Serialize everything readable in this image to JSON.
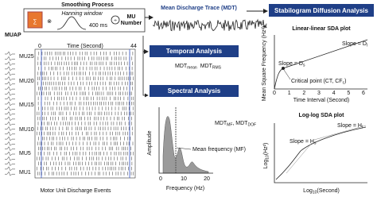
{
  "smoothing": {
    "title": "Smoothing Process",
    "window": "Hanning window",
    "duration": "400 ms",
    "divisor": [
      "MU",
      "Number"
    ]
  },
  "raster": {
    "muap_label": "MUAP",
    "units": [
      "MU25",
      "MU20",
      "MU15",
      "MU10",
      "MU5",
      "MU1"
    ],
    "axis_start": 0,
    "axis_label": "Time (Second)",
    "axis_end": 44,
    "caption": "Motor Unit Discharge Events"
  },
  "mdt": {
    "title": "Mean Discharge Trace (MDT)"
  },
  "temporal": {
    "title": "Temporal Analysis",
    "metrics": [
      {
        "base": "MDT",
        "sub": "mean"
      },
      {
        "base": "MDT",
        "sub": "RMS"
      }
    ]
  },
  "spectral": {
    "title": "Spectral Analysis",
    "metrics": [
      {
        "base": "MDT",
        "sub": "MF"
      },
      {
        "base": ", MDT",
        "sub": "DOF"
      }
    ],
    "y_label": "Amplitude",
    "x_label": "Frequency (Hz)",
    "x_ticks": [
      0,
      10,
      20
    ],
    "annotation": "Mean frequency (MF)"
  },
  "sda": {
    "title": "Stabilogram Diffusion Analysis",
    "linear": {
      "title": "Linear-linear SDA plot",
      "y_label": "Mean Square Frequency (Hz²)",
      "x_label": "Time Interval (Second)",
      "x_ticks": [
        0,
        1,
        2,
        3,
        4,
        5,
        6
      ],
      "slope_long": {
        "text": "Slope = D",
        "sub": "l"
      },
      "slope_short": {
        "text": "Slope = D",
        "sub": "s"
      },
      "critical": {
        "text": "Critical point (CT, CF",
        "sub": "c",
        "end": ")"
      }
    },
    "log": {
      "title": "Log-log SDA plot",
      "y_label": {
        "text": "Log",
        "sub": "10",
        "end": "(Hz²)"
      },
      "x_label": {
        "text": "Log",
        "sub": "10",
        "end": "(Second)"
      },
      "slope_long": {
        "text": "Slope = H",
        "sub": "l"
      },
      "slope_short": {
        "text": "Slope = H",
        "sub": "s"
      }
    }
  }
}
